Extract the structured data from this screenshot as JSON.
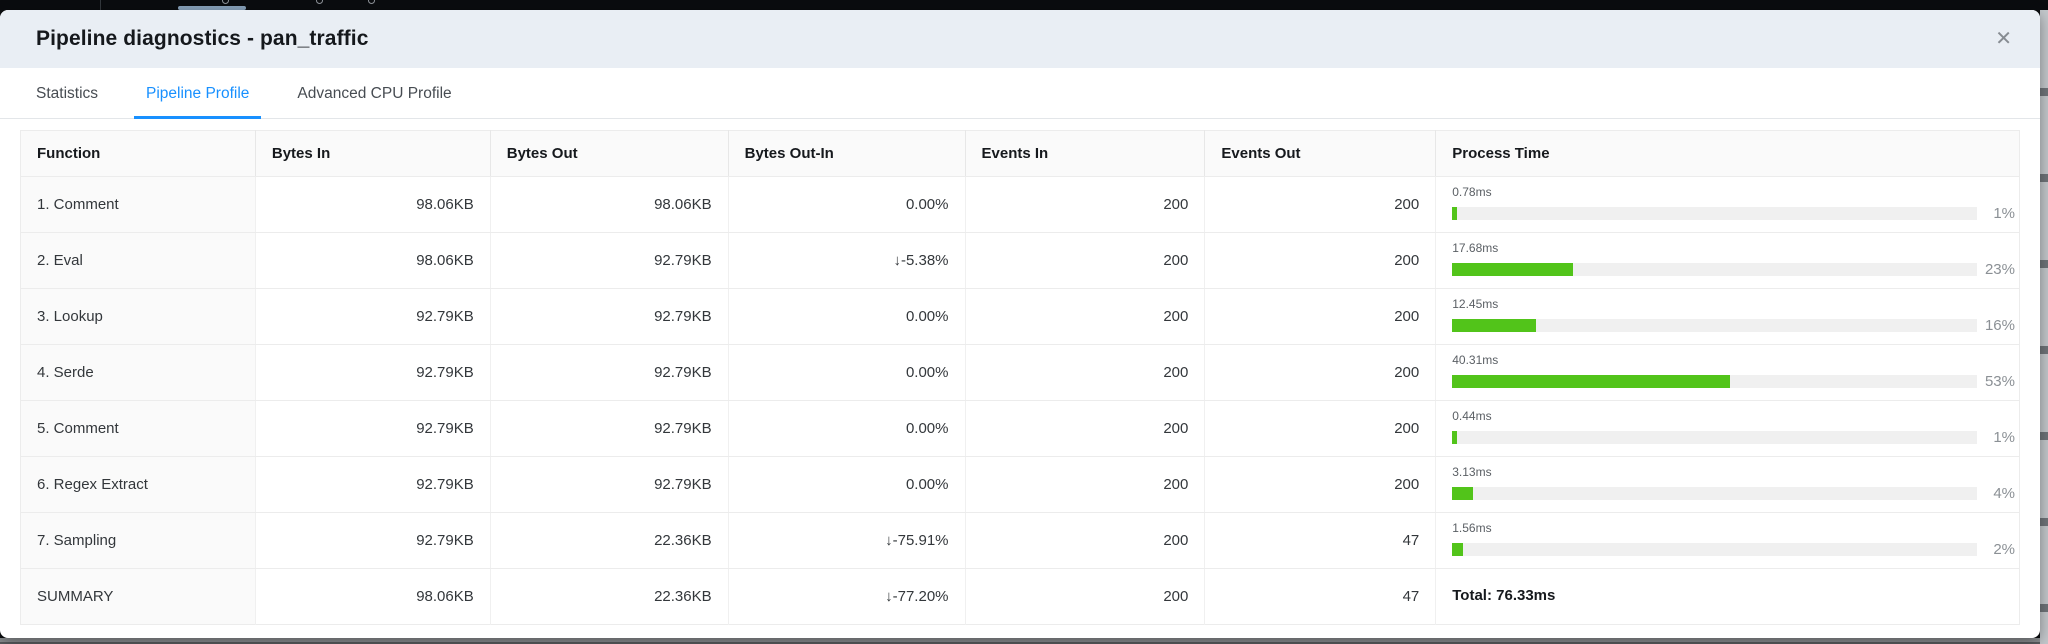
{
  "window": {
    "title": "Pipeline diagnostics - pan_traffic",
    "close_icon": "✕"
  },
  "tabs": [
    {
      "label": "Statistics"
    },
    {
      "label": "Pipeline Profile"
    },
    {
      "label": "Advanced CPU Profile"
    }
  ],
  "active_tab": "Pipeline Profile",
  "table": {
    "columns": [
      "Function",
      "Bytes In",
      "Bytes Out",
      "Bytes Out-In",
      "Events In",
      "Events Out",
      "Process Time"
    ],
    "rows": [
      {
        "function": "1. Comment",
        "bytes_in": "98.06KB",
        "bytes_out": "98.06KB",
        "bytes_out_in": "0.00%",
        "events_in": "200",
        "events_out": "200",
        "process_time_ms": "0.78ms",
        "process_time_pct": 1,
        "process_time_pct_label": "1%"
      },
      {
        "function": "2. Eval",
        "bytes_in": "98.06KB",
        "bytes_out": "92.79KB",
        "bytes_out_in": "↓-5.38%",
        "events_in": "200",
        "events_out": "200",
        "process_time_ms": "17.68ms",
        "process_time_pct": 23,
        "process_time_pct_label": "23%"
      },
      {
        "function": "3. Lookup",
        "bytes_in": "92.79KB",
        "bytes_out": "92.79KB",
        "bytes_out_in": "0.00%",
        "events_in": "200",
        "events_out": "200",
        "process_time_ms": "12.45ms",
        "process_time_pct": 16,
        "process_time_pct_label": "16%"
      },
      {
        "function": "4. Serde",
        "bytes_in": "92.79KB",
        "bytes_out": "92.79KB",
        "bytes_out_in": "0.00%",
        "events_in": "200",
        "events_out": "200",
        "process_time_ms": "40.31ms",
        "process_time_pct": 53,
        "process_time_pct_label": "53%"
      },
      {
        "function": "5. Comment",
        "bytes_in": "92.79KB",
        "bytes_out": "92.79KB",
        "bytes_out_in": "0.00%",
        "events_in": "200",
        "events_out": "200",
        "process_time_ms": "0.44ms",
        "process_time_pct": 1,
        "process_time_pct_label": "1%"
      },
      {
        "function": "6. Regex Extract",
        "bytes_in": "92.79KB",
        "bytes_out": "92.79KB",
        "bytes_out_in": "0.00%",
        "events_in": "200",
        "events_out": "200",
        "process_time_ms": "3.13ms",
        "process_time_pct": 4,
        "process_time_pct_label": "4%"
      },
      {
        "function": "7. Sampling",
        "bytes_in": "92.79KB",
        "bytes_out": "22.36KB",
        "bytes_out_in": "↓-75.91%",
        "events_in": "200",
        "events_out": "47",
        "process_time_ms": "1.56ms",
        "process_time_pct": 2,
        "process_time_pct_label": "2%"
      }
    ],
    "summary_row": {
      "function": "SUMMARY",
      "bytes_in": "98.06KB",
      "bytes_out": "22.36KB",
      "bytes_out_in": "↓-77.20%",
      "events_in": "200",
      "events_out": "47",
      "process_time_total": "Total: 76.33ms"
    }
  },
  "colors": {
    "accent_blue": "#1890ff",
    "bar_green": "#52c41a",
    "bar_track": "#f0f0f0",
    "modal_header_bg": "#e9eef4"
  }
}
